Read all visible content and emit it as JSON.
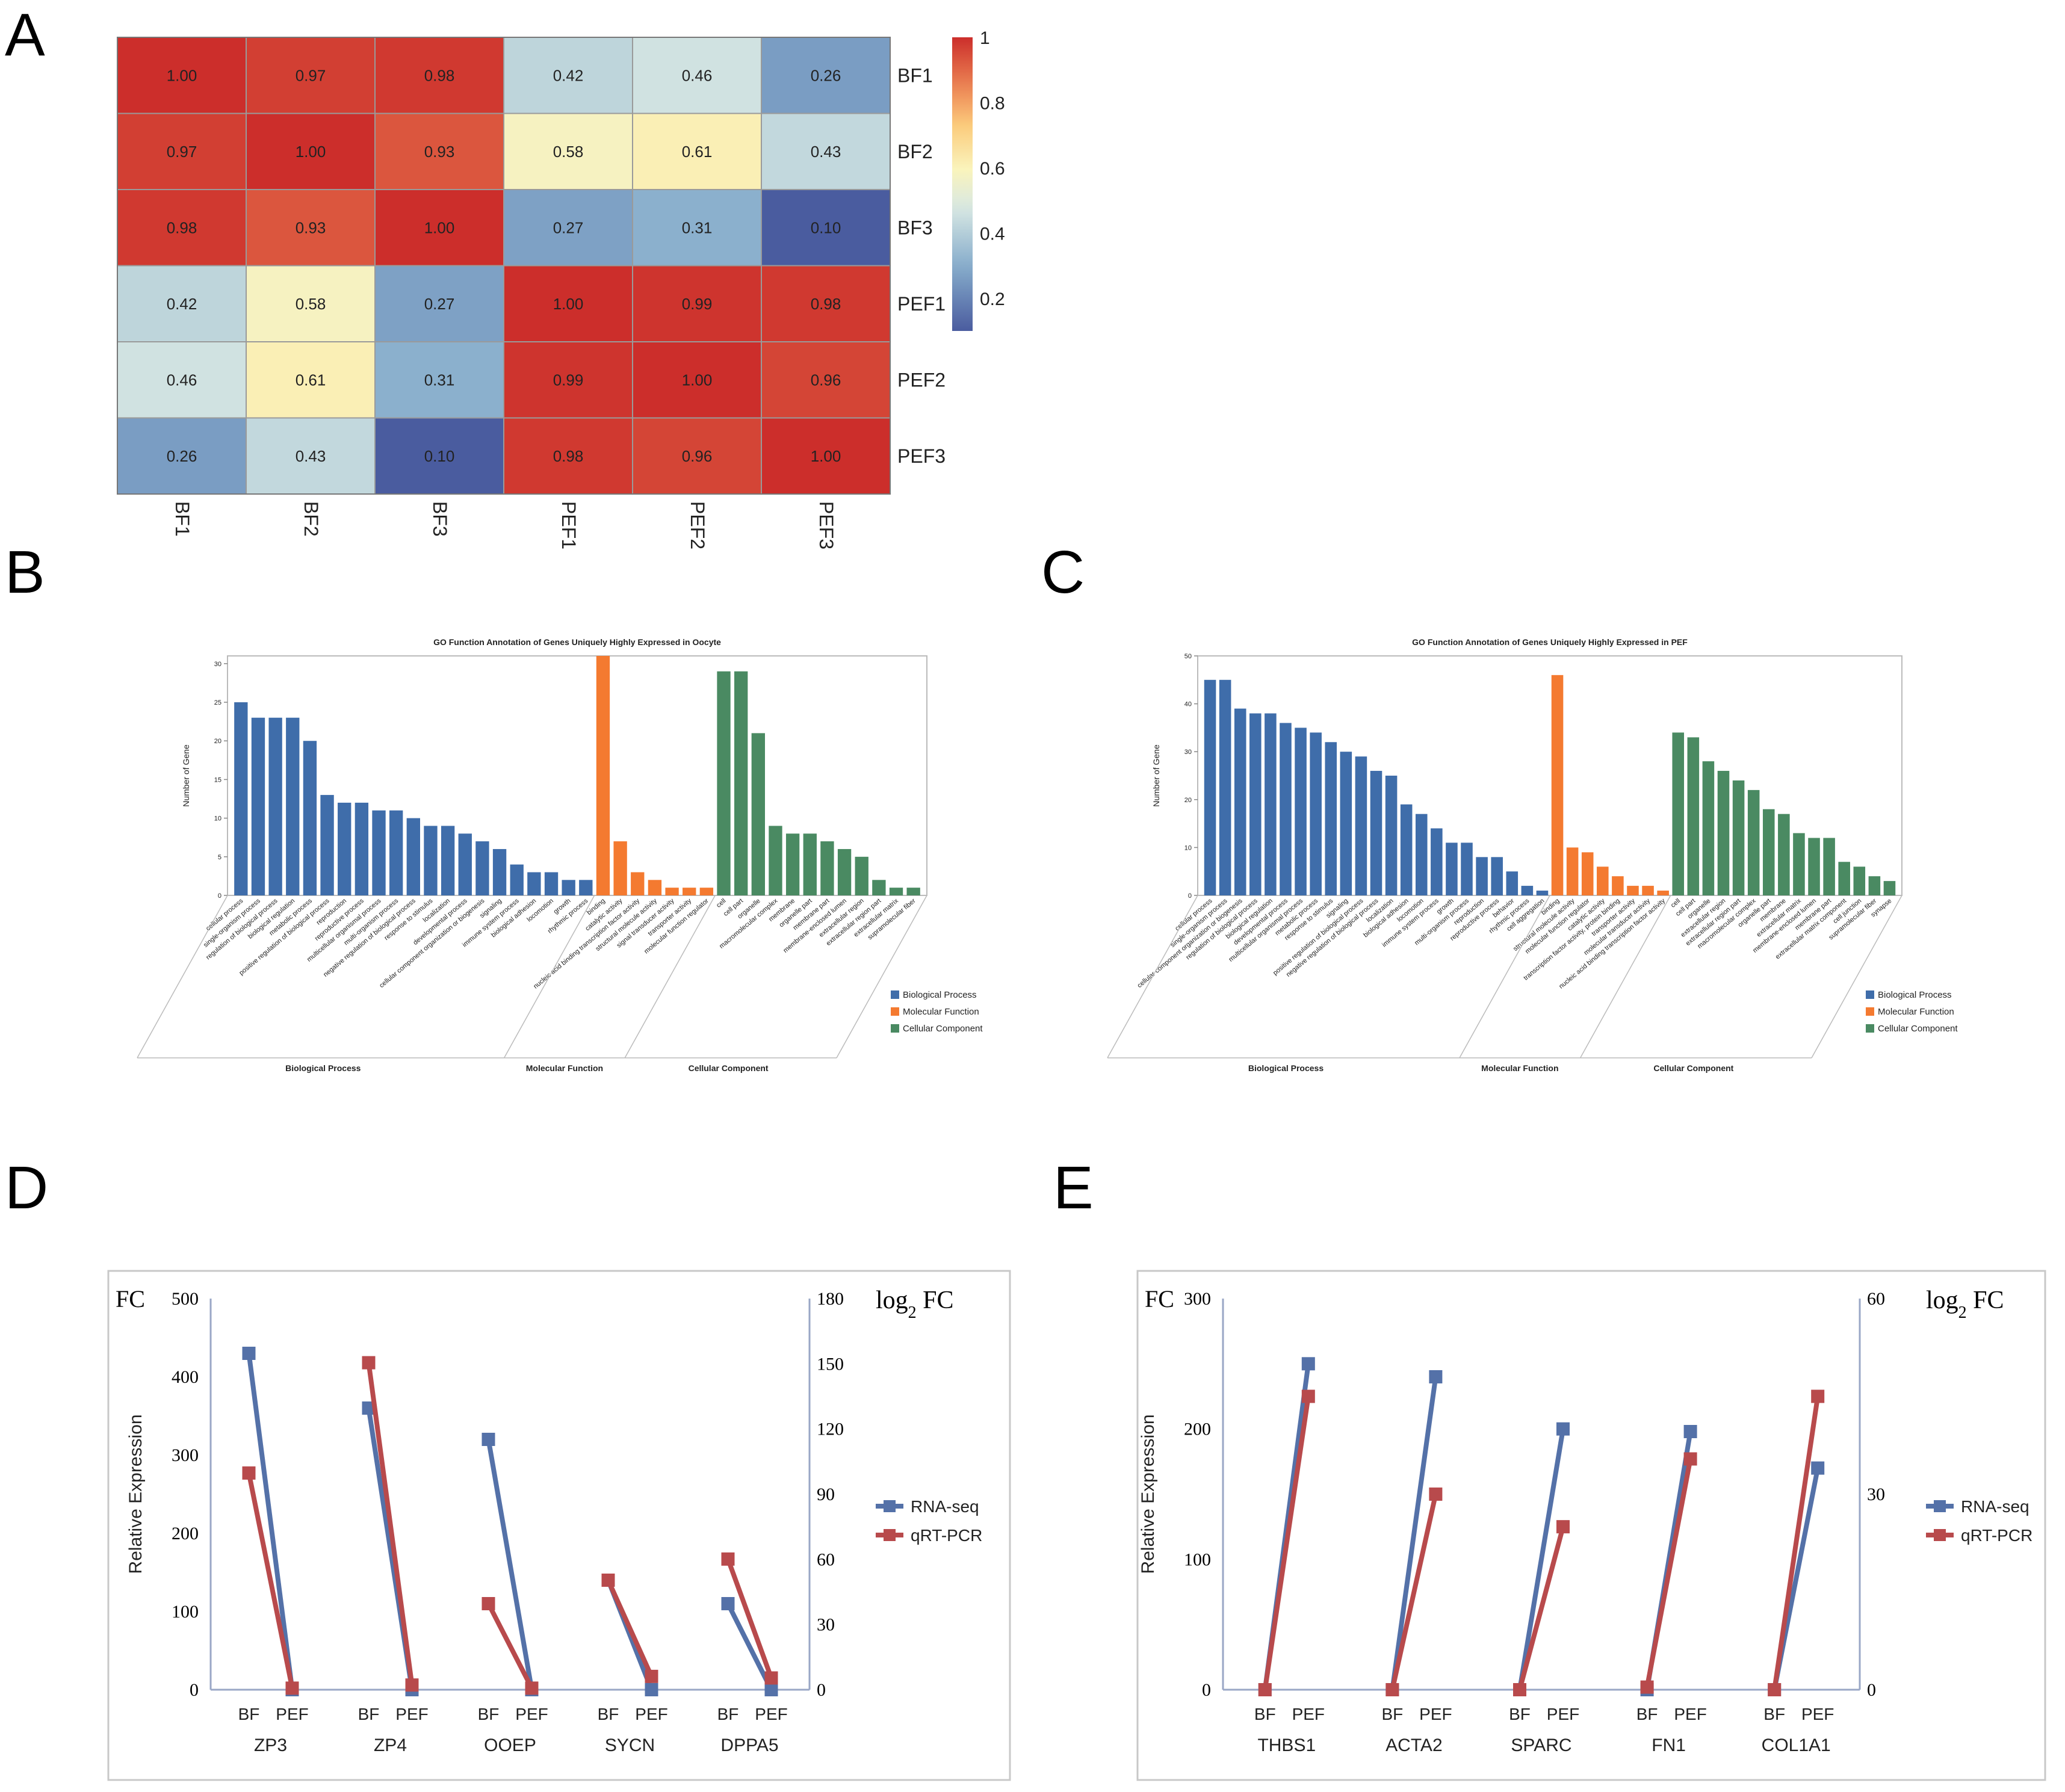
{
  "panels": {
    "a": "A",
    "b": "B",
    "c": "C",
    "d": "D",
    "e": "E"
  },
  "colors": {
    "bio": "#3F6DAA",
    "mol": "#F47A30",
    "cell": "#4A8A62",
    "rnaseq": "#5471A8",
    "qrtpcr": "#B84A4C",
    "hm_low": "#4A5C9F",
    "hm_mid": "#FAF4BC",
    "hm_high": "#CC2E2B"
  },
  "chart_data": [
    {
      "type": "heatmap",
      "id": "A",
      "rows": [
        "BF1",
        "BF2",
        "BF3",
        "PEF1",
        "PEF2",
        "PEF3"
      ],
      "cols": [
        "BF1",
        "BF2",
        "BF3",
        "PEF1",
        "PEF2",
        "PEF3"
      ],
      "values": [
        [
          1.0,
          0.97,
          0.98,
          0.42,
          0.46,
          0.26
        ],
        [
          0.97,
          1.0,
          0.93,
          0.58,
          0.61,
          0.43
        ],
        [
          0.98,
          0.93,
          1.0,
          0.27,
          0.31,
          0.1
        ],
        [
          0.42,
          0.58,
          0.27,
          1.0,
          0.99,
          0.98
        ],
        [
          0.46,
          0.61,
          0.31,
          0.99,
          1.0,
          0.96
        ],
        [
          0.26,
          0.43,
          0.1,
          0.98,
          0.96,
          1.0
        ]
      ],
      "value_labels": [
        [
          "1.00",
          "0.97",
          "0.98",
          "0.42",
          "0.46",
          "0.26"
        ],
        [
          "0.97",
          "1.00",
          "0.93",
          "0.58",
          "0.61",
          "0.43"
        ],
        [
          "0.98",
          "0.93",
          "1.00",
          "0.27",
          "0.31",
          "0.10"
        ],
        [
          "0.42",
          "0.58",
          "0.27",
          "1.00",
          "0.99",
          "0.98"
        ],
        [
          "0.46",
          "0.61",
          "0.31",
          "0.99",
          "1.00",
          "0.96"
        ],
        [
          "0.26",
          "0.43",
          "0.10",
          "0.98",
          "0.96",
          "1.00"
        ]
      ],
      "colorbar": {
        "range": [
          0.1,
          1
        ],
        "ticks": [
          "1",
          "0.8",
          "0.6",
          "0.4",
          "0.2"
        ],
        "tick_values": [
          1,
          0.8,
          0.6,
          0.4,
          0.2
        ]
      }
    },
    {
      "type": "bar",
      "id": "B",
      "title": "GO Function Annotation of Genes Uniquely Highly Expressed in Oocyte",
      "ylabel": "Number of Gene",
      "ylim": [
        0,
        31
      ],
      "yticks": [
        "0",
        "5",
        "10",
        "15",
        "20",
        "25",
        "30"
      ],
      "ytick_values": [
        0,
        5,
        10,
        15,
        20,
        25,
        30
      ],
      "groups": [
        {
          "name": "Biological Process",
          "color_key": "bio",
          "categories": [
            "cellular process",
            "single-organism process",
            "regulation of biological process",
            "biological regulation",
            "metabolic process",
            "positive regulation of biological process",
            "reproduction",
            "reproductive process",
            "multicellular organismal process",
            "multi-organism process",
            "negative regulation of biological process",
            "response to stimulus",
            "localization",
            "developmental process",
            "cellular component organization or biogenesis",
            "signaling",
            "immune system process",
            "biological adhesion",
            "locomotion",
            "growth",
            "rhythmic process"
          ],
          "values": [
            25,
            23,
            23,
            23,
            20,
            13,
            12,
            12,
            11,
            11,
            10,
            9,
            9,
            8,
            7,
            6,
            4,
            3,
            3,
            2,
            2
          ]
        },
        {
          "name": "Molecular Function",
          "color_key": "mol",
          "categories": [
            "binding",
            "catalytic activity",
            "nucleic acid binding transcription factor activity",
            "structural molecule activity",
            "signal transducer activity",
            "transporter activity",
            "molecular function regulator"
          ],
          "values": [
            31,
            7,
            3,
            2,
            1,
            1,
            1
          ]
        },
        {
          "name": "Cellular Component",
          "color_key": "cell",
          "categories": [
            "cell",
            "cell part",
            "organelle",
            "macromolecular complex",
            "membrane",
            "organelle part",
            "membrane part",
            "membrane-enclosed lumen",
            "extracellular region",
            "extracellular region part",
            "extracellular matrix",
            "supramolecular fiber"
          ],
          "values": [
            29,
            29,
            21,
            9,
            8,
            8,
            7,
            6,
            5,
            2,
            1,
            1
          ]
        }
      ],
      "legend": [
        "Biological Process",
        "Molecular Function",
        "Cellular Component"
      ]
    },
    {
      "type": "bar",
      "id": "C",
      "title": "GO Function Annotation of Genes Uniquely Highly Expressed in PEF",
      "ylabel": "Number of Gene",
      "ylim": [
        0,
        50
      ],
      "yticks": [
        "0",
        "10",
        "20",
        "30",
        "40",
        "50"
      ],
      "ytick_values": [
        0,
        10,
        20,
        30,
        40,
        50
      ],
      "groups": [
        {
          "name": "Biological Process",
          "color_key": "bio",
          "categories": [
            "cellular process",
            "single-organism process",
            "cellular component organization or biogenesis",
            "regulation of biological process",
            "biological regulation",
            "developmental process",
            "multicellular organismal process",
            "metabolic process",
            "response to stimulus",
            "signaling",
            "positive regulation of biological process",
            "negative regulation of biological process",
            "localization",
            "biological adhesion",
            "locomotion",
            "immune system process",
            "growth",
            "multi-organism process",
            "reproduction",
            "reproductive process",
            "behavior",
            "rhythmic process",
            "cell aggregation"
          ],
          "values": [
            45,
            45,
            39,
            38,
            38,
            36,
            35,
            34,
            32,
            30,
            29,
            26,
            25,
            19,
            17,
            14,
            11,
            11,
            8,
            8,
            5,
            2,
            1
          ]
        },
        {
          "name": "Molecular Function",
          "color_key": "mol",
          "categories": [
            "binding",
            "structural molecule activity",
            "molecular function regulator",
            "catalytic activity",
            "transcription factor activity, protein binding",
            "transporter activity",
            "molecular transducer activity",
            "nucleic acid binding transcription factor activity"
          ],
          "values": [
            46,
            10,
            9,
            6,
            4,
            2,
            2,
            1
          ]
        },
        {
          "name": "Cellular Component",
          "color_key": "cell",
          "categories": [
            "cell",
            "cell part",
            "organelle",
            "extracellular region",
            "extracellular region part",
            "macromolecular complex",
            "organelle part",
            "membrane",
            "extracellular matrix",
            "membrane-enclosed lumen",
            "membrane part",
            "extracellular matrix component",
            "cell junction",
            "supramolecular fiber",
            "synapse"
          ],
          "values": [
            34,
            33,
            28,
            26,
            24,
            22,
            18,
            17,
            13,
            12,
            12,
            7,
            6,
            4,
            3
          ]
        }
      ],
      "legend": [
        "Biological Process",
        "Molecular Function",
        "Cellular Component"
      ]
    },
    {
      "type": "line",
      "id": "D",
      "ylabel": "Relative Expression",
      "left_axis_title": "FC",
      "right_axis_title_main": "log",
      "right_axis_title_sub": "2",
      "right_axis_title_end": " FC",
      "left_ylim": [
        0,
        500
      ],
      "left_yticks": [
        "0",
        "100",
        "200",
        "300",
        "400",
        "500"
      ],
      "left_ytick_values": [
        0,
        100,
        200,
        300,
        400,
        500
      ],
      "right_ylim": [
        0,
        180
      ],
      "right_yticks": [
        "0",
        "30",
        "60",
        "90",
        "120",
        "150",
        "180"
      ],
      "right_ytick_values": [
        0,
        30,
        60,
        90,
        120,
        150,
        180
      ],
      "genes": [
        "ZP3",
        "ZP4",
        "OOEP",
        "SYCN",
        "DPPA5"
      ],
      "conditions": [
        "BF",
        "PEF"
      ],
      "series": [
        {
          "name": "RNA-seq",
          "color_key": "rnaseq",
          "axis": "left",
          "values": [
            [
              430,
              0
            ],
            [
              360,
              0
            ],
            [
              320,
              0
            ],
            [
              140,
              0
            ],
            [
              110,
              0
            ]
          ]
        },
        {
          "name": "qRT-PCR",
          "color_key": "qrtpcr",
          "axis": "left",
          "values": [
            [
              277,
              2
            ],
            [
              418,
              6
            ],
            [
              110,
              2
            ],
            [
              140,
              17
            ],
            [
              167,
              15
            ]
          ]
        }
      ]
    },
    {
      "type": "line",
      "id": "E",
      "ylabel": "Relative Expression",
      "left_axis_title": "FC",
      "right_axis_title_main": "log",
      "right_axis_title_sub": "2",
      "right_axis_title_end": " FC",
      "left_ylim": [
        0,
        300
      ],
      "left_yticks": [
        "0",
        "100",
        "200",
        "300"
      ],
      "left_ytick_values": [
        0,
        100,
        200,
        300
      ],
      "right_ylim": [
        0,
        60
      ],
      "right_yticks": [
        "0",
        "30",
        "60"
      ],
      "right_ytick_values": [
        0,
        30,
        60
      ],
      "genes": [
        "THBS1",
        "ACTA2",
        "SPARC",
        "FN1",
        "COL1A1"
      ],
      "conditions": [
        "BF",
        "PEF"
      ],
      "series": [
        {
          "name": "RNA-seq",
          "color_key": "rnaseq",
          "axis": "left",
          "values": [
            [
              0,
              250
            ],
            [
              0,
              240
            ],
            [
              0,
              200
            ],
            [
              0,
              198
            ],
            [
              0,
              170
            ]
          ]
        },
        {
          "name": "qRT-PCR",
          "color_key": "qrtpcr",
          "axis": "left",
          "values": [
            [
              0,
              225
            ],
            [
              0,
              150
            ],
            [
              0,
              125
            ],
            [
              2,
              177
            ],
            [
              0,
              225
            ]
          ]
        }
      ]
    }
  ]
}
